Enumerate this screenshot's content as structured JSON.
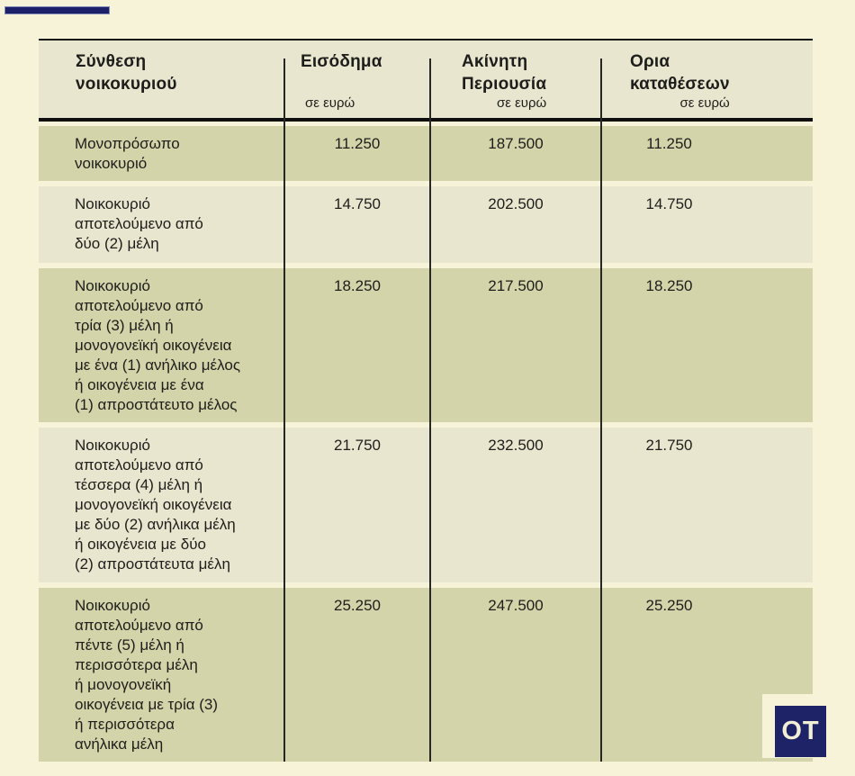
{
  "brand": {
    "logo_text": "OT"
  },
  "colors": {
    "page_background": "#f7f3d8",
    "row_olive": "#d3d4a9",
    "row_light": "#e9e6cf",
    "navy": "#1e2266",
    "line": "#141414",
    "text": "#1d1d1b"
  },
  "table": {
    "columns": [
      {
        "title": "Σύνθεση\nνοικοκυριού",
        "subtitle": ""
      },
      {
        "title": "Εισόδημα",
        "subtitle": "σε ευρώ"
      },
      {
        "title": "Ακίνητη\nΠεριουσία",
        "subtitle": "σε ευρώ"
      },
      {
        "title": "Ορια\nκαταθέσεων",
        "subtitle": "σε ευρώ"
      }
    ],
    "rows": [
      {
        "label": "Μονοπρόσωπο\nνοικοκυριό",
        "income": "11.250",
        "property": "187.500",
        "deposits": "11.250"
      },
      {
        "label": "Νοικοκυριό\nαποτελούμενο από\nδύο (2) μέλη",
        "income": "14.750",
        "property": "202.500",
        "deposits": "14.750"
      },
      {
        "label": "Νοικοκυριό\nαποτελούμενο από\nτρία (3) μέλη ή\nμονογονεϊκή οικογένεια\nμε ένα (1) ανήλικο μέλος\nή οικογένεια με ένα\n(1) απροστάτευτο μέλος",
        "income": "18.250",
        "property": "217.500",
        "deposits": "18.250"
      },
      {
        "label": "Νοικοκυριό\nαποτελούμενο από\nτέσσερα (4) μέλη ή\nμονογονεϊκή οικογένεια\nμε δύο (2) ανήλικα μέλη\nή οικογένεια με δύο\n(2) απροστάτευτα μέλη",
        "income": "21.750",
        "property": "232.500",
        "deposits": "21.750"
      },
      {
        "label": "Νοικοκυριό\nαποτελούμενο από\nπέντε (5) μέλη ή\nπερισσότερα μέλη\nή μονογονεϊκή\nοικογένεια με τρία (3)\nή περισσότερα\nανήλικα μέλη",
        "income": "25.250",
        "property": "247.500",
        "deposits": "25.250"
      }
    ]
  },
  "chart_data": {
    "type": "table",
    "title": "",
    "columns": [
      "Σύνθεση νοικοκυριού",
      "Εισόδημα σε ευρώ",
      "Ακίνητη Περιουσία σε ευρώ",
      "Ορια καταθέσεων σε ευρώ"
    ],
    "rows": [
      [
        "Μονοπρόσωπο νοικοκυριό",
        "11.250",
        "187.500",
        "11.250"
      ],
      [
        "Νοικοκυριό αποτελούμενο από δύο (2) μέλη",
        "14.750",
        "202.500",
        "14.750"
      ],
      [
        "Νοικοκυριό αποτελούμενο από τρία (3) μέλη ή μονογονεϊκή οικογένεια με ένα (1) ανήλικο μέλος ή οικογένεια με ένα (1) απροστάτευτο μέλος",
        "18.250",
        "217.500",
        "18.250"
      ],
      [
        "Νοικοκυριό αποτελούμενο από τέσσερα (4) μέλη ή μονογονεϊκή οικογένεια με δύο (2) ανήλικα μέλη ή οικογένεια με δύο (2) απροστάτευτα μέλη",
        "21.750",
        "232.500",
        "21.750"
      ],
      [
        "Νοικοκυριό αποτελούμενο από πέντε (5) μέλη ή περισσότερα μέλη ή μονογονεϊκή οικογένεια με τρία (3) ή περισσότερα ανήλικα μέλη",
        "25.250",
        "247.500",
        "25.250"
      ]
    ]
  }
}
